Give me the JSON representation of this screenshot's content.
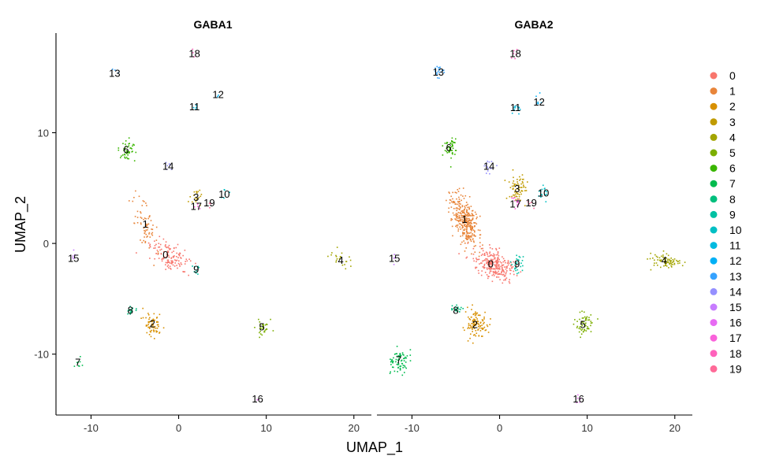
{
  "chart_data": {
    "type": "scatter",
    "xlabel": "UMAP_1",
    "ylabel": "UMAP_2",
    "xlim": [
      -14,
      22
    ],
    "ylim": [
      -15.5,
      19
    ],
    "xticks": [
      -10,
      0,
      10,
      20
    ],
    "yticks": [
      -10,
      0,
      10
    ],
    "grid": false,
    "legend_position": "right",
    "legend_title": "",
    "legend_entries": [
      "0",
      "1",
      "2",
      "3",
      "4",
      "5",
      "6",
      "7",
      "8",
      "9",
      "10",
      "11",
      "12",
      "13",
      "14",
      "15",
      "16",
      "17",
      "18",
      "19"
    ],
    "colors": [
      "#F8766D",
      "#E8853A",
      "#D89000",
      "#C09B00",
      "#A3A500",
      "#7CAE00",
      "#39B600",
      "#00BB4E",
      "#00BF7D",
      "#00C1A3",
      "#00BFC4",
      "#00BAE0",
      "#00B0F6",
      "#35A2FF",
      "#9590FF",
      "#C77CFF",
      "#E76BF3",
      "#FA62DB",
      "#FF62BC",
      "#FF6A98"
    ],
    "panels": [
      {
        "title": "GABA1",
        "clusters": [
          {
            "id": "0",
            "x": -1.5,
            "y": -1.0,
            "n": 130
          },
          {
            "id": "1",
            "x": -3.8,
            "y": 1.8,
            "n": 70
          },
          {
            "id": "2",
            "x": -3.0,
            "y": -7.2,
            "n": 65
          },
          {
            "id": "3",
            "x": 2.0,
            "y": 4.2,
            "n": 18
          },
          {
            "id": "4",
            "x": 18.5,
            "y": -1.5,
            "n": 22
          },
          {
            "id": "5",
            "x": 9.5,
            "y": -7.5,
            "n": 28
          },
          {
            "id": "6",
            "x": -6.0,
            "y": 8.5,
            "n": 45
          },
          {
            "id": "7",
            "x": -11.5,
            "y": -10.7,
            "n": 8
          },
          {
            "id": "8",
            "x": -5.5,
            "y": -6.0,
            "n": 18
          },
          {
            "id": "9",
            "x": 2.0,
            "y": -2.3,
            "n": 10
          },
          {
            "id": "10",
            "x": 5.2,
            "y": 4.5,
            "n": 6
          },
          {
            "id": "11",
            "x": 1.8,
            "y": 12.4,
            "n": 4
          },
          {
            "id": "12",
            "x": 4.5,
            "y": 13.5,
            "n": 2
          },
          {
            "id": "13",
            "x": -7.3,
            "y": 15.4,
            "n": 3
          },
          {
            "id": "14",
            "x": -1.2,
            "y": 7.0,
            "n": 6
          },
          {
            "id": "15",
            "x": -12.0,
            "y": -1.3,
            "n": 5
          },
          {
            "id": "16",
            "x": 9.0,
            "y": -14.0,
            "n": 2
          },
          {
            "id": "17",
            "x": 2.0,
            "y": 3.4,
            "n": 4
          },
          {
            "id": "18",
            "x": 1.8,
            "y": 17.2,
            "n": 3
          },
          {
            "id": "19",
            "x": 3.5,
            "y": 3.7,
            "n": 3
          }
        ]
      },
      {
        "title": "GABA2",
        "clusters": [
          {
            "id": "0",
            "x": -1.0,
            "y": -1.8,
            "n": 260
          },
          {
            "id": "1",
            "x": -4.0,
            "y": 2.2,
            "n": 330
          },
          {
            "id": "2",
            "x": -2.8,
            "y": -7.3,
            "n": 110
          },
          {
            "id": "3",
            "x": 2.0,
            "y": 5.0,
            "n": 70
          },
          {
            "id": "4",
            "x": 18.8,
            "y": -1.5,
            "n": 80
          },
          {
            "id": "5",
            "x": 9.5,
            "y": -7.3,
            "n": 60
          },
          {
            "id": "6",
            "x": -5.8,
            "y": 8.7,
            "n": 45
          },
          {
            "id": "7",
            "x": -11.5,
            "y": -10.5,
            "n": 70
          },
          {
            "id": "8",
            "x": -5.0,
            "y": -6.0,
            "n": 20
          },
          {
            "id": "9",
            "x": 2.0,
            "y": -1.8,
            "n": 25
          },
          {
            "id": "10",
            "x": 5.0,
            "y": 4.6,
            "n": 15
          },
          {
            "id": "11",
            "x": 1.8,
            "y": 12.3,
            "n": 12
          },
          {
            "id": "12",
            "x": 4.5,
            "y": 12.8,
            "n": 6
          },
          {
            "id": "13",
            "x": -7.0,
            "y": 15.5,
            "n": 18
          },
          {
            "id": "14",
            "x": -1.2,
            "y": 7.0,
            "n": 14
          },
          {
            "id": "15",
            "x": -12.0,
            "y": -1.3,
            "n": 4
          },
          {
            "id": "16",
            "x": 9.0,
            "y": -14.0,
            "n": 5
          },
          {
            "id": "17",
            "x": 1.8,
            "y": 3.6,
            "n": 12
          },
          {
            "id": "18",
            "x": 1.8,
            "y": 17.2,
            "n": 6
          },
          {
            "id": "19",
            "x": 3.6,
            "y": 3.7,
            "n": 4
          }
        ]
      }
    ]
  }
}
